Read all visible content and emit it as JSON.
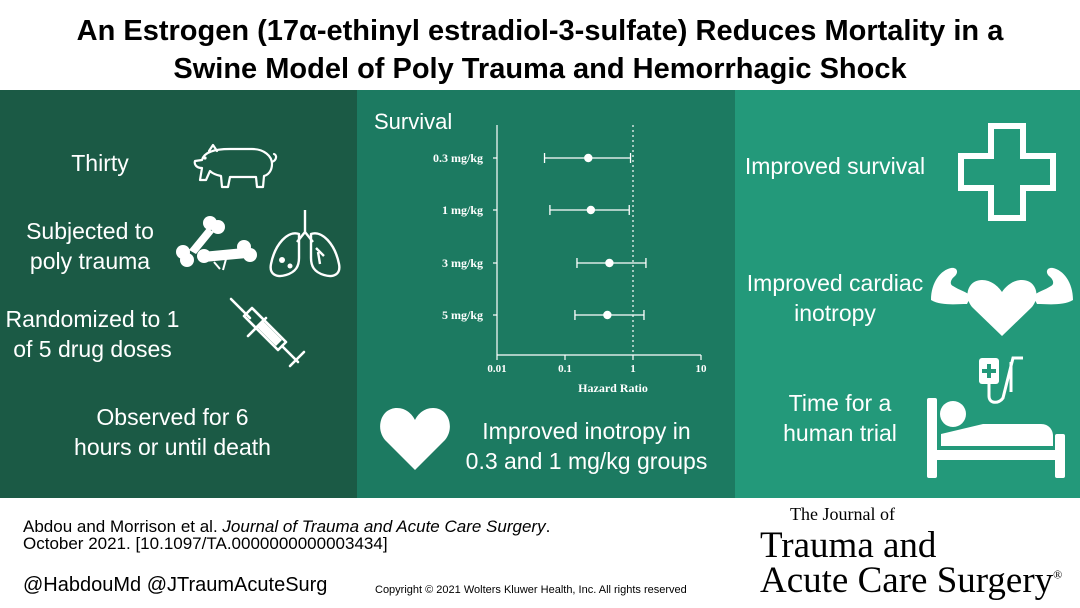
{
  "title": {
    "line1": "An Estrogen (17α-ethinyl estradiol-3-sulfate) Reduces Mortality in a",
    "line2": "Swine Model of Poly Trauma and Hemorrhagic Shock"
  },
  "left_panel": {
    "items": [
      {
        "text": "Thirty",
        "icon": "pig-icon"
      },
      {
        "text": "Subjected to poly trauma",
        "line1": "Subjected to",
        "line2": "poly trauma",
        "icon": "broken-bone-icon"
      },
      {
        "text": "Randomized to 1 of 5 drug doses",
        "line1": "Randomized to 1",
        "line2": "of 5 drug doses",
        "icon": "syringe-icon"
      },
      {
        "text": "Observed for 6 hours or until death",
        "line1": "Observed for 6",
        "line2": "hours or until death"
      }
    ],
    "extra_icon": "lungs-icon",
    "color": "#1b5a45"
  },
  "middle_panel": {
    "color": "#1c7a61",
    "chart_label": "Survival",
    "inotropy_line1": "Improved inotropy in",
    "inotropy_line2": "0.3 and 1 mg/kg groups",
    "inotropy_icon": "heart-icon"
  },
  "chart_data": {
    "type": "scatter",
    "subtype": "forest-plot",
    "title": "Survival",
    "xlabel": "Hazard Ratio",
    "x_scale": "log",
    "xlim": [
      0.01,
      10
    ],
    "xticks": [
      "0.01",
      "0.1",
      "1",
      "10"
    ],
    "reference_line": 1,
    "categories": [
      "0.3 mg/kg",
      "1 mg/kg",
      "3 mg/kg",
      "5 mg/kg"
    ],
    "estimates": [
      0.22,
      0.24,
      0.45,
      0.42
    ],
    "ci_low": [
      0.05,
      0.06,
      0.15,
      0.14
    ],
    "ci_high": [
      0.92,
      0.88,
      1.55,
      1.45
    ]
  },
  "right_panel": {
    "color": "#23997a",
    "items": [
      {
        "text": "Improved survival",
        "icon": "medical-cross-icon"
      },
      {
        "text": "Improved cardiac inotropy",
        "line1": "Improved cardiac",
        "line2": "inotropy",
        "icon": "strong-heart-icon"
      },
      {
        "text": "Time for a human trial",
        "line1": "Time for a",
        "line2": "human trial",
        "icon": "hospital-bed-icon"
      }
    ]
  },
  "footer": {
    "citation_authors": "Abdou and Morrison et al. ",
    "citation_journal": "Journal of Trauma and Acute Care Surgery",
    "citation_end": ".",
    "citation_line2": "October 2021. [10.1097/TA.0000000000003434]",
    "handles": "@HabdouMd @JTraumAcuteSurg",
    "copyright": "Copyright © 2021  Wolters Kluwer Health, Inc. All rights reserved"
  },
  "journal_logo": {
    "line1": "The Journal of",
    "line2": "Trauma and",
    "line3": "Acute Care Surgery",
    "mark": "®"
  }
}
